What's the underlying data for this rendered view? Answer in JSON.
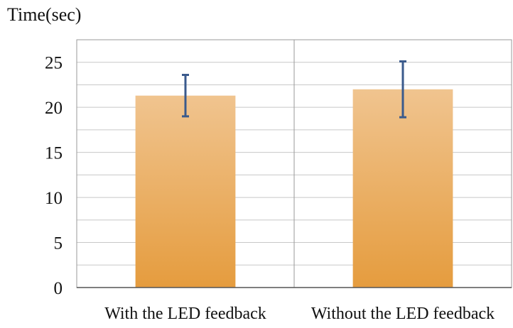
{
  "chart_data": {
    "type": "bar",
    "ylabel": "Time(sec)",
    "categories": [
      "With the LED feedback",
      "Without the LED feedback"
    ],
    "values": [
      21.3,
      22.0
    ],
    "error_low": [
      19.0,
      18.9
    ],
    "error_high": [
      23.6,
      25.1
    ],
    "ylim": [
      0,
      27.5
    ],
    "yticks": [
      0,
      5,
      10,
      15,
      20,
      25
    ],
    "minor_grid_step": 2.5,
    "grid": true,
    "colors": {
      "bar_top": "#f0c48f",
      "bar_bottom": "#e59c3e",
      "error_bar": "#3a5a8c",
      "grid": "#c8c8c8",
      "axis": "#555555"
    }
  }
}
